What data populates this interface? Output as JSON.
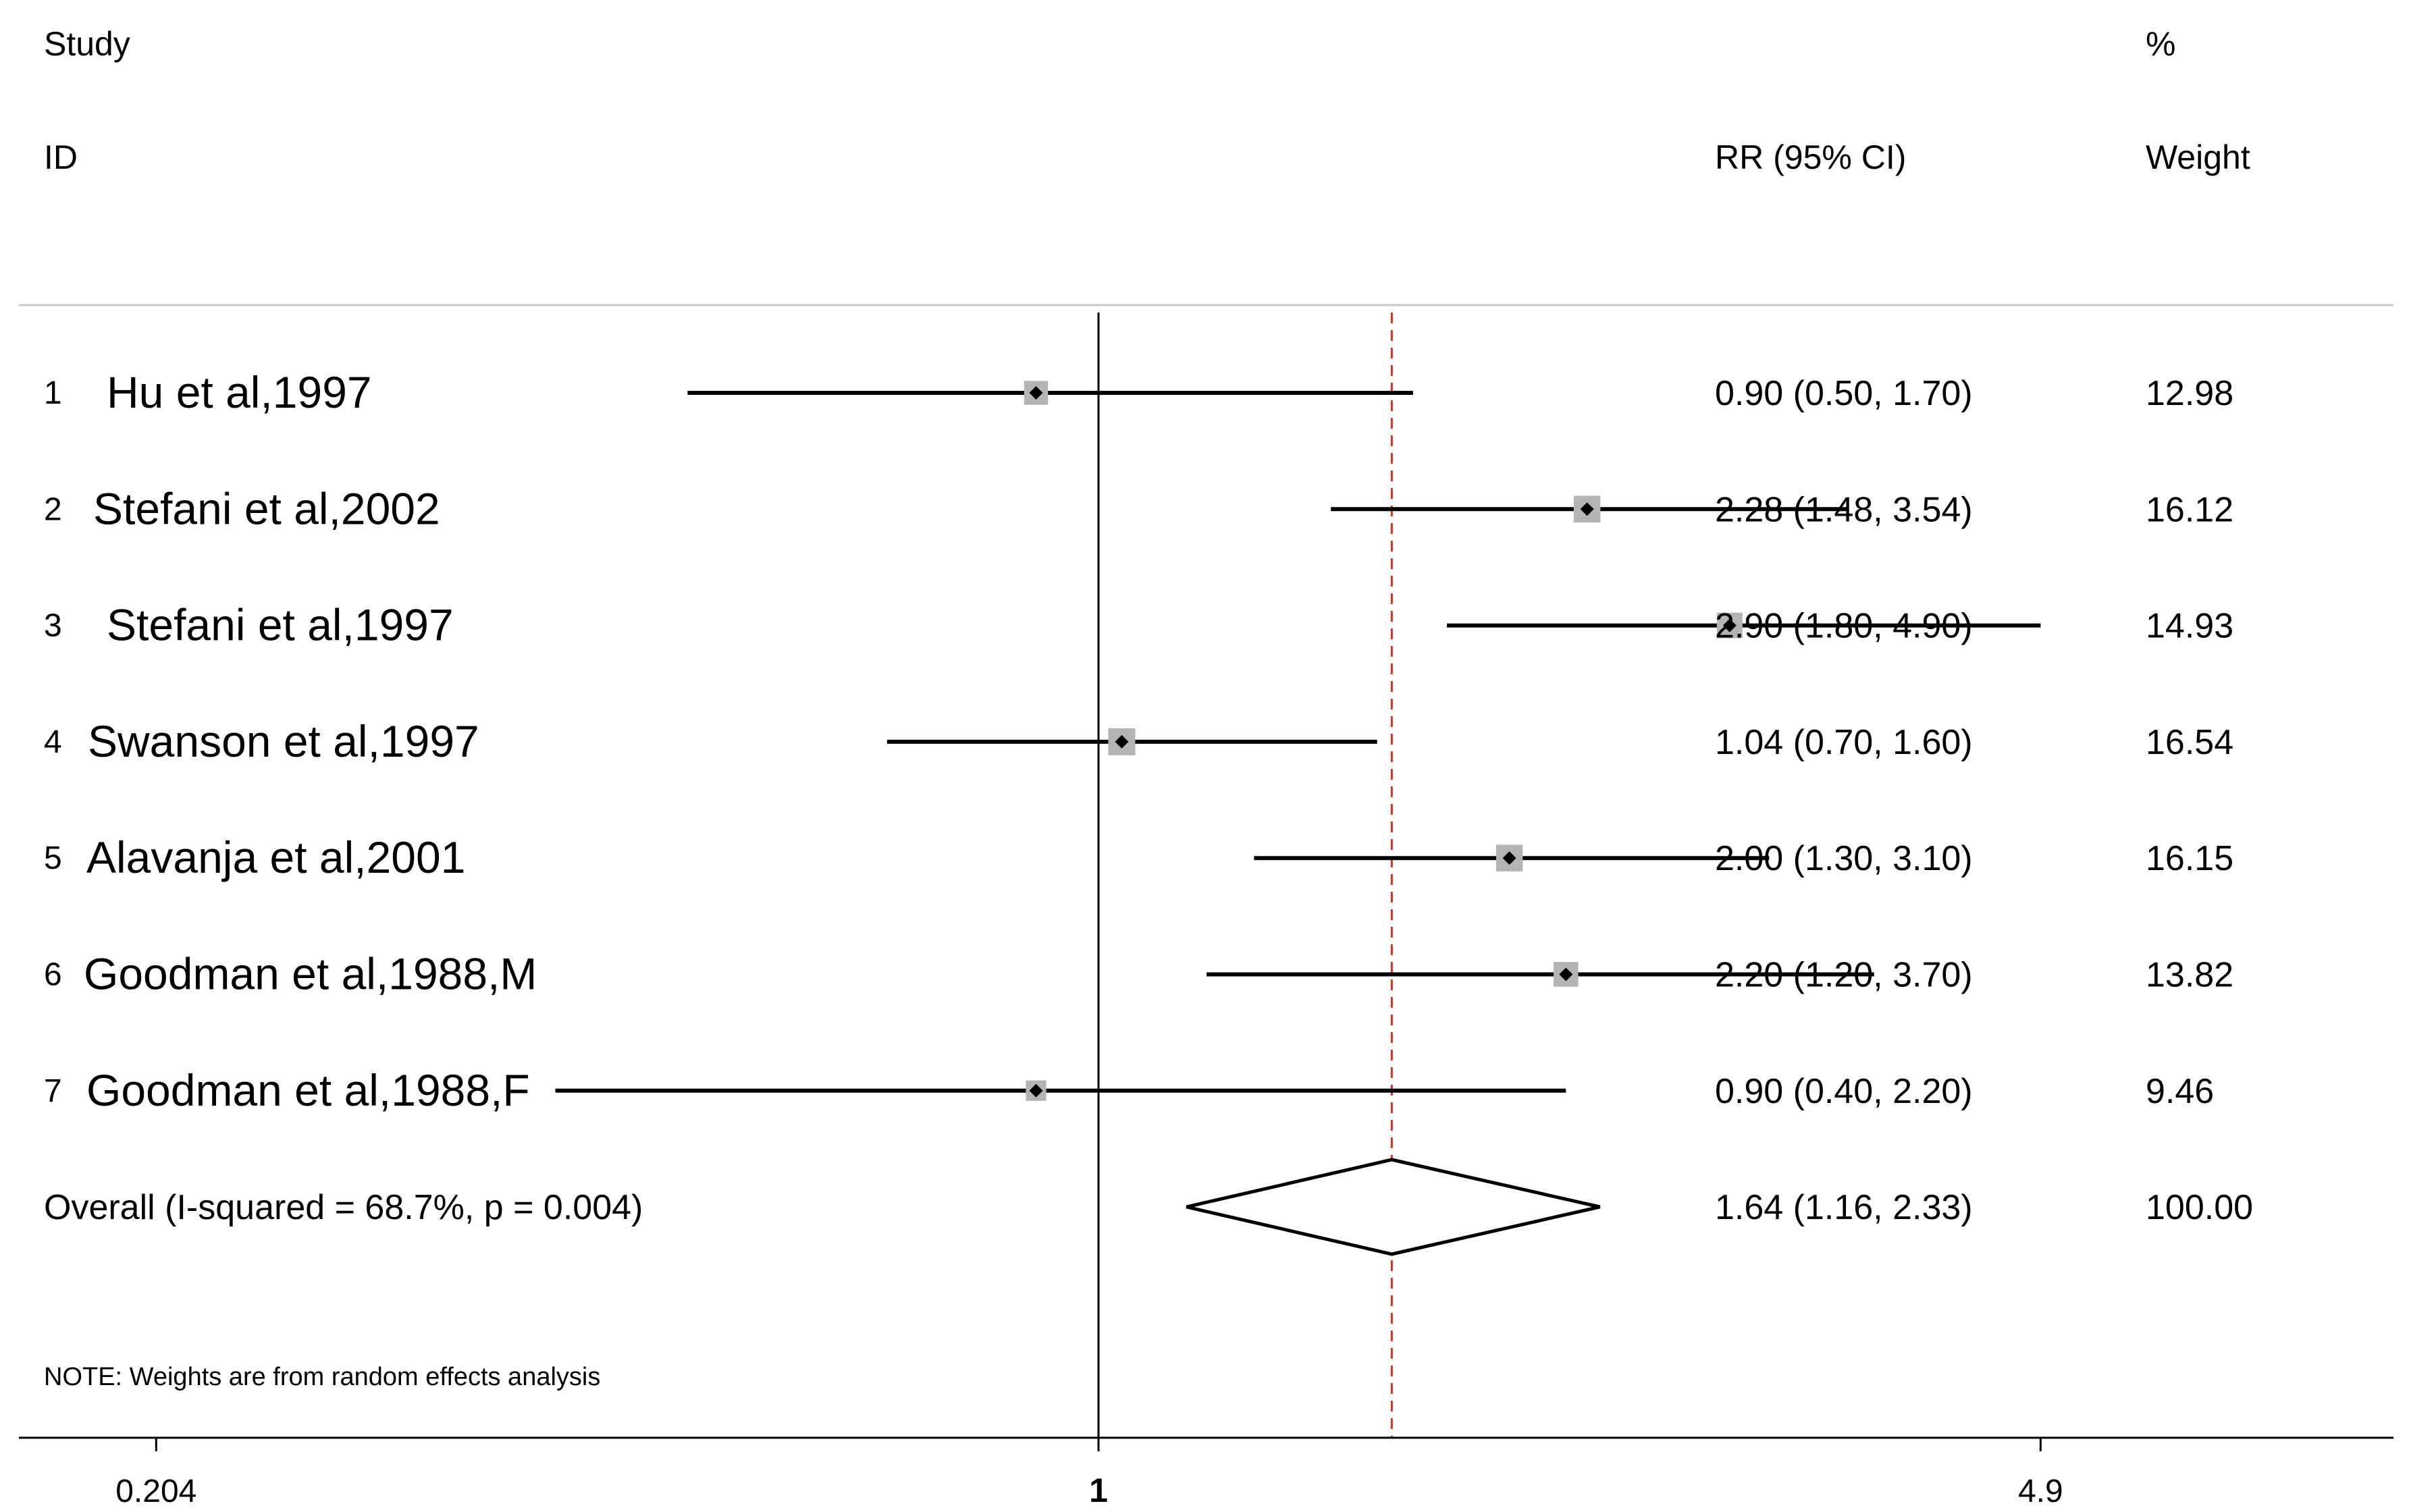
{
  "chart_data": {
    "type": "forest",
    "headers": {
      "study": "Study",
      "id": "ID",
      "rr": "RR (95% CI)",
      "pct": "%",
      "weight": "Weight"
    },
    "studies": [
      {
        "num": "1",
        "name": "Hu et al,1997",
        "rr": 0.9,
        "lo": 0.5,
        "hi": 1.7,
        "rr_text": "0.90 (0.50, 1.70)",
        "weight": 12.98,
        "weight_text": "12.98"
      },
      {
        "num": "2",
        "name": "Stefani et al,2002",
        "rr": 2.28,
        "lo": 1.48,
        "hi": 3.54,
        "rr_text": "2.28 (1.48, 3.54)",
        "weight": 16.12,
        "weight_text": "16.12"
      },
      {
        "num": "3",
        "name": "Stefani et al,1997",
        "rr": 2.9,
        "lo": 1.8,
        "hi": 4.9,
        "rr_text": "2.90 (1.80, 4.90)",
        "weight": 14.93,
        "weight_text": "14.93"
      },
      {
        "num": "4",
        "name": "Swanson et al,1997",
        "rr": 1.04,
        "lo": 0.7,
        "hi": 1.6,
        "rr_text": "1.04 (0.70, 1.60)",
        "weight": 16.54,
        "weight_text": "16.54"
      },
      {
        "num": "5",
        "name": "Alavanja et al,2001",
        "rr": 2.0,
        "lo": 1.3,
        "hi": 3.1,
        "rr_text": "2.00 (1.30, 3.10)",
        "weight": 16.15,
        "weight_text": "16.15"
      },
      {
        "num": "6",
        "name": "Goodman et al,1988,M",
        "rr": 2.2,
        "lo": 1.2,
        "hi": 3.7,
        "rr_text": "2.20 (1.20, 3.70)",
        "weight": 13.82,
        "weight_text": "13.82"
      },
      {
        "num": "7",
        "name": "Goodman et al,1988,F",
        "rr": 0.9,
        "lo": 0.4,
        "hi": 2.2,
        "rr_text": "0.90 (0.40, 2.20)",
        "weight": 9.46,
        "weight_text": "9.46"
      }
    ],
    "overall": {
      "label": "Overall  (I-squared = 68.7%, p = 0.004)",
      "rr": 1.64,
      "lo": 1.16,
      "hi": 2.33,
      "rr_text": "1.64 (1.16, 2.33)",
      "weight_text": "100.00"
    },
    "note": "NOTE: Weights are from random effects analysis",
    "x_axis": {
      "scale": "log",
      "ticks": [
        {
          "value": 0.204,
          "label": "0.204",
          "bold": false
        },
        {
          "value": 1,
          "label": "1",
          "bold": true
        },
        {
          "value": 4.9,
          "label": "4.9",
          "bold": false
        }
      ]
    },
    "null_line": 1,
    "colors": {
      "ink": "#000000",
      "weight_box": "#b4b4b4",
      "overall_line": "#c0392b",
      "rule": "#c8c8c8"
    }
  }
}
